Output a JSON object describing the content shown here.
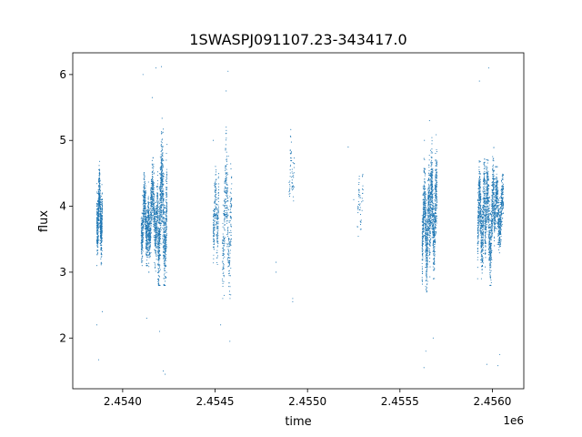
{
  "chart_data": {
    "type": "scatter",
    "title": "1SWASPJ091107.23-343417.0",
    "xlabel": "time",
    "ylabel": "flux",
    "x_offset_label": "1e6",
    "xlim": [
      2.45373,
      2.45617
    ],
    "ylim": [
      1.23,
      6.33
    ],
    "x_ticks": [
      2.454,
      2.4545,
      2.455,
      2.4555,
      2.456
    ],
    "x_tick_labels": [
      "2.4540",
      "2.4545",
      "2.4550",
      "2.4555",
      "2.4560"
    ],
    "y_ticks": [
      2,
      3,
      4,
      5,
      6
    ],
    "y_tick_labels": [
      "2",
      "3",
      "4",
      "5",
      "6"
    ],
    "grid": false,
    "marker_color": "#1f77b4",
    "series": [
      {
        "clusters": [
          {
            "x": [
              2.45386,
              2.45389
            ],
            "y_range": [
              3.1,
              4.7
            ],
            "y_mean": 3.9,
            "n": 700
          },
          {
            "x": [
              2.4541,
              2.45414
            ],
            "y_range": [
              3.1,
              4.7
            ],
            "y_mean": 3.8,
            "n": 600
          },
          {
            "x": [
              2.45414,
              2.45419
            ],
            "y_range": [
              3.0,
              4.8
            ],
            "y_mean": 3.9,
            "n": 700
          },
          {
            "x": [
              2.45419,
              2.45424
            ],
            "y_range": [
              2.8,
              5.6
            ],
            "y_mean": 3.9,
            "n": 900
          },
          {
            "x": [
              2.45449,
              2.45452
            ],
            "y_range": [
              3.1,
              4.8
            ],
            "y_mean": 3.9,
            "n": 250
          },
          {
            "x": [
              2.45454,
              2.45459
            ],
            "y_range": [
              2.6,
              5.5
            ],
            "y_mean": 3.8,
            "n": 350
          },
          {
            "x": [
              2.4549,
              2.45493
            ],
            "y_range": [
              3.9,
              5.3
            ],
            "y_mean": 4.5,
            "n": 60
          },
          {
            "x": [
              2.45527,
              2.4553
            ],
            "y_range": [
              3.4,
              4.6
            ],
            "y_mean": 4.0,
            "n": 50
          },
          {
            "x": [
              2.45562,
              2.45566
            ],
            "y_range": [
              2.7,
              5.0
            ],
            "y_mean": 3.7,
            "n": 700
          },
          {
            "x": [
              2.45566,
              2.4557
            ],
            "y_range": [
              2.9,
              5.2
            ],
            "y_mean": 3.9,
            "n": 700
          },
          {
            "x": [
              2.45592,
              2.45596
            ],
            "y_range": [
              2.9,
              4.9
            ],
            "y_mean": 3.8,
            "n": 600
          },
          {
            "x": [
              2.45596,
              2.45601
            ],
            "y_range": [
              2.8,
              5.0
            ],
            "y_mean": 3.8,
            "n": 700
          },
          {
            "x": [
              2.45601,
              2.45606
            ],
            "y_range": [
              3.1,
              4.6
            ],
            "y_mean": 3.9,
            "n": 600
          }
        ],
        "outliers": [
          [
            2.45386,
            2.2
          ],
          [
            2.45387,
            1.67
          ],
          [
            2.45389,
            2.4
          ],
          [
            2.45411,
            6.0
          ],
          [
            2.45416,
            5.65
          ],
          [
            2.45418,
            6.1
          ],
          [
            2.4542,
            2.1
          ],
          [
            2.45421,
            6.12
          ],
          [
            2.45422,
            1.5
          ],
          [
            2.45423,
            1.45
          ],
          [
            2.45413,
            2.3
          ],
          [
            2.45449,
            5.0
          ],
          [
            2.45453,
            2.2
          ],
          [
            2.45456,
            5.75
          ],
          [
            2.45457,
            6.05
          ],
          [
            2.45458,
            1.95
          ],
          [
            2.45483,
            3.15
          ],
          [
            2.45483,
            3.0
          ],
          [
            2.45492,
            2.55
          ],
          [
            2.45492,
            2.6
          ],
          [
            2.45522,
            4.9
          ],
          [
            2.45525,
            4.1
          ],
          [
            2.45563,
            1.55
          ],
          [
            2.45564,
            1.8
          ],
          [
            2.45566,
            5.3
          ],
          [
            2.45568,
            2.0
          ],
          [
            2.45593,
            5.9
          ],
          [
            2.45598,
            6.1
          ],
          [
            2.45597,
            1.6
          ],
          [
            2.45603,
            1.58
          ],
          [
            2.45604,
            1.75
          ]
        ]
      }
    ]
  }
}
